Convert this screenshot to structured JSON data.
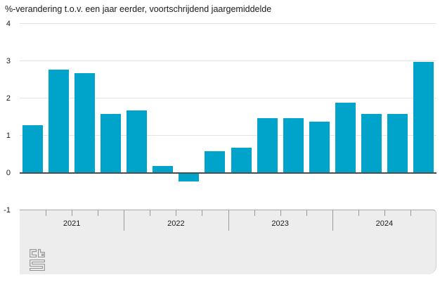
{
  "title": "%-verandering t.o.v. een jaar eerder, voortschrijdend jaargemiddelde",
  "chart_data": {
    "type": "bar",
    "title": "%-verandering t.o.v. een jaar eerder, voortschrijdend jaargemiddelde",
    "categories": [
      "2021 Q1",
      "2021 Q2",
      "2021 Q3",
      "2021 Q4",
      "2022 Q1",
      "2022 Q2",
      "2022 Q3",
      "2022 Q4",
      "2023 Q1",
      "2023 Q2",
      "2023 Q3",
      "2023 Q4",
      "2024 Q1",
      "2024 Q2",
      "2024 Q3",
      "2024 Q4"
    ],
    "values": [
      1.3,
      2.8,
      2.7,
      1.6,
      1.7,
      0.2,
      -0.2,
      0.6,
      0.7,
      1.5,
      1.5,
      1.4,
      1.9,
      1.6,
      1.6,
      3.0
    ],
    "year_labels": [
      "2021",
      "2022",
      "2023",
      "2024"
    ],
    "y_ticks": [
      4,
      3,
      2,
      1,
      0,
      -1
    ],
    "ylim": [
      -1,
      4
    ],
    "xlabel": "",
    "ylabel": "",
    "grid": "horizontal",
    "legend": "none"
  },
  "colors": {
    "bar": "#00a3c9",
    "gridline": "#e4e4e4",
    "zero_line": "#4d4d4d",
    "band_bg": "#ededed",
    "band_border": "#a6a6a6",
    "tick": "#9a9a9a",
    "text": "#1a1a1a",
    "logo": "#919191"
  },
  "logo": {
    "label": "cbs"
  }
}
